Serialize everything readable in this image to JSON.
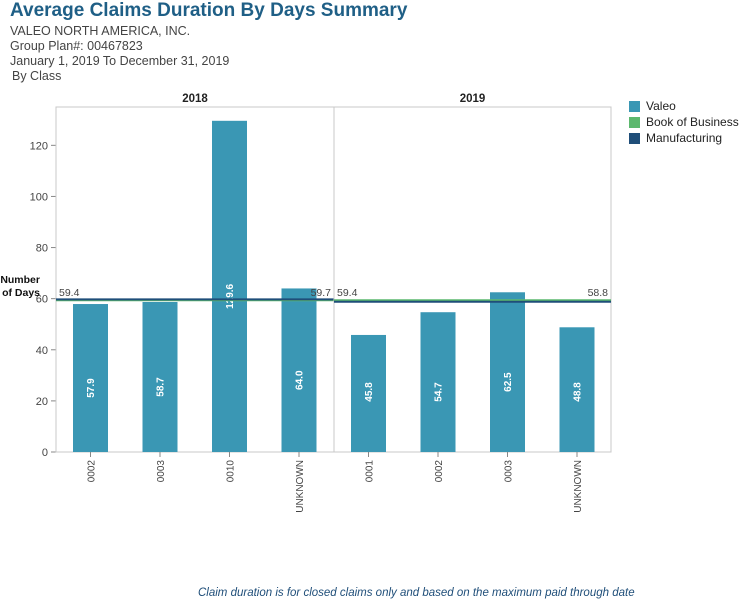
{
  "header": {
    "title": "Average Claims Duration By Days Summary",
    "company": "VALEO NORTH AMERICA, INC.",
    "group_plan": "Group Plan#: 00467823",
    "date_range": "January 1, 2019 To December 31, 2019",
    "grouping": "By Class"
  },
  "legend": {
    "items": [
      {
        "label": "Valeo",
        "color": "#3a97b4"
      },
      {
        "label": "Book of Business",
        "color": "#5cb86e"
      },
      {
        "label": "Manufacturing",
        "color": "#1f4e79"
      }
    ]
  },
  "footer": {
    "note": "Claim duration is for closed claims only and based on the maximum paid through date"
  },
  "chart_data": {
    "type": "bar",
    "ylabel": "Number of Days",
    "ylim": [
      0,
      135
    ],
    "yticks": [
      0,
      20,
      40,
      60,
      80,
      100,
      120
    ],
    "grid": false,
    "legend_position": "right",
    "bar_color": "#3a97b4",
    "panels": [
      {
        "title": "2018",
        "categories": [
          "0002",
          "0003",
          "0010",
          "UNKNOWN"
        ],
        "series": [
          {
            "name": "Valeo",
            "values": [
              57.9,
              58.7,
              129.6,
              64.0
            ]
          }
        ],
        "reference_lines": [
          {
            "name": "Book of Business",
            "value": 59.4,
            "label": "59.4",
            "color": "#5cb86e"
          },
          {
            "name": "Manufacturing",
            "value": 59.7,
            "label": "59.7",
            "color": "#1f4e79"
          }
        ]
      },
      {
        "title": "2019",
        "categories": [
          "0001",
          "0002",
          "0003",
          "UNKNOWN"
        ],
        "series": [
          {
            "name": "Valeo",
            "values": [
              45.8,
              54.7,
              62.5,
              48.8
            ]
          }
        ],
        "reference_lines": [
          {
            "name": "Book of Business",
            "value": 59.4,
            "label": "59.4",
            "color": "#5cb86e"
          },
          {
            "name": "Manufacturing",
            "value": 58.8,
            "label": "58.8",
            "color": "#1f4e79"
          }
        ]
      }
    ]
  }
}
